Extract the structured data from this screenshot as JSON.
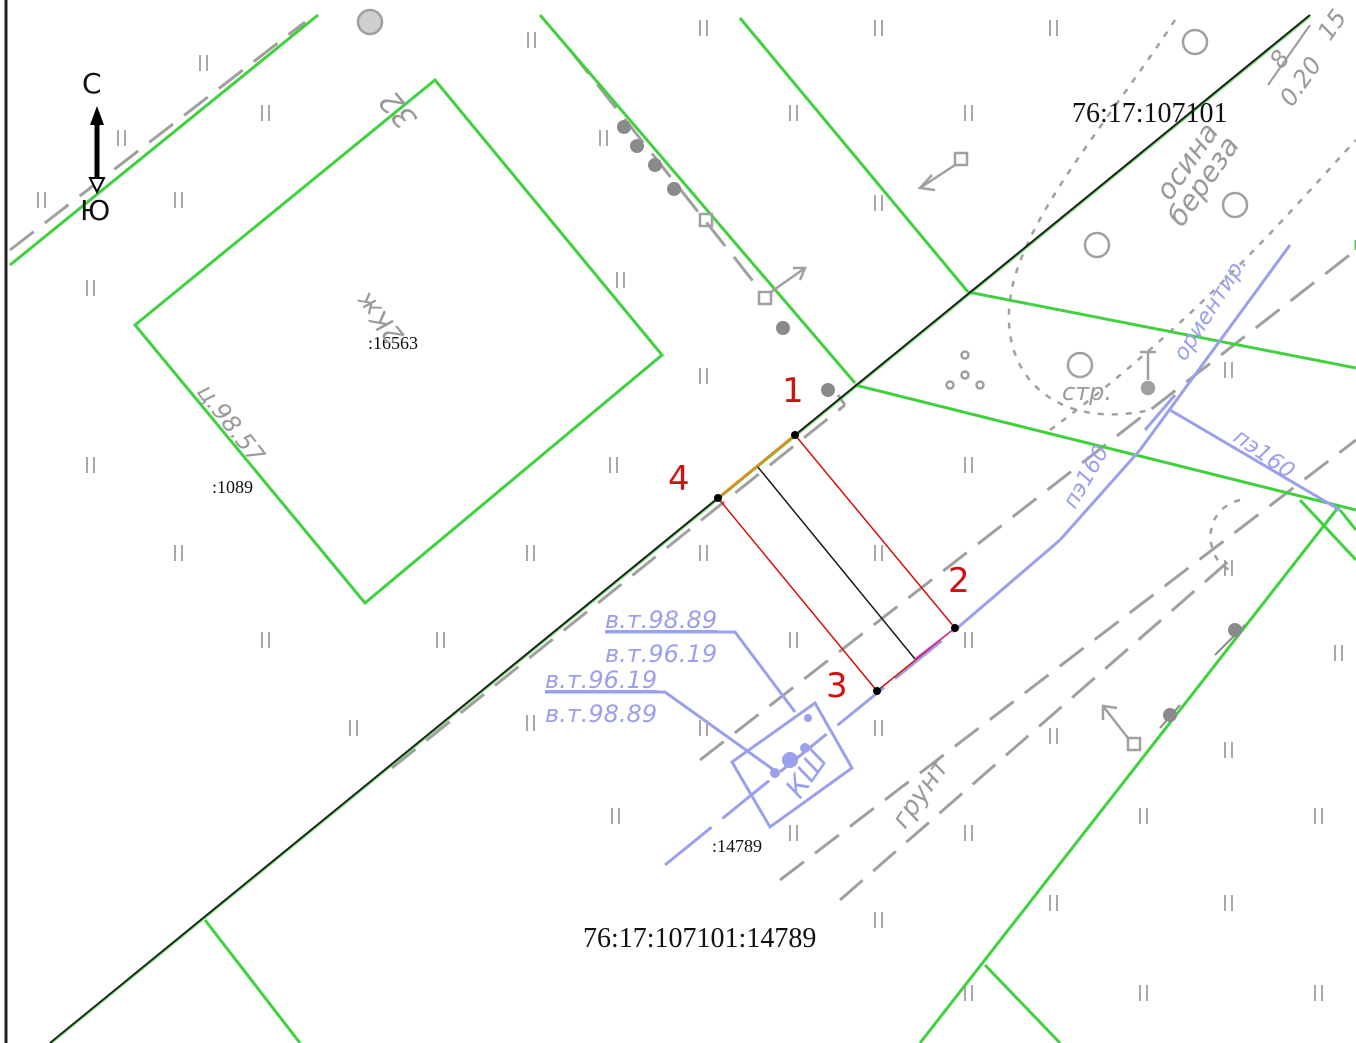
{
  "compass": {
    "north": "С",
    "south": "Ю"
  },
  "parcels": {
    "quarter": "76:17:107101",
    "parcel_full": "76:17:107101:14789",
    "p16563": ":16563",
    "p1089": ":1089",
    "p14789": ":14789"
  },
  "building": {
    "number": "32",
    "type": "2Кж"
  },
  "elevation": "ц.98.57",
  "boundary_points": [
    "1",
    "2",
    "3",
    "4"
  ],
  "utilities": {
    "bt1": "в.т.98.89",
    "bt2": "в.т.96.19",
    "bt3": "в.т.96.19",
    "bt4": "в.т.98.89",
    "well": "КШ",
    "pipe1": "пэ160",
    "pipe2": "пэ160",
    "orient": "ориентир."
  },
  "terrain": {
    "trees": "осина",
    "trees2": "береза",
    "construction": "стр.",
    "ground": "грунт",
    "fraction_top": "8",
    "fraction_bottom": "0.20",
    "fraction_side": "15"
  },
  "colors": {
    "parcel_boundary": "#3fd13f",
    "utility": "#9aa0ec",
    "new_boundary": "#d21010",
    "grey_lines": "#a0a0a0"
  }
}
